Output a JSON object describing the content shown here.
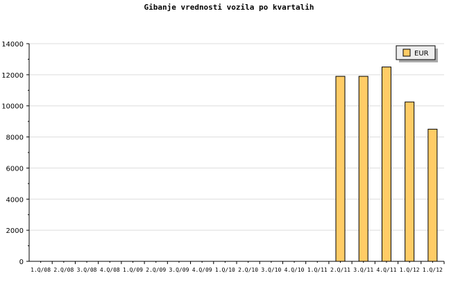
{
  "chart_data": {
    "type": "bar",
    "title": "Gibanje vrednosti vozila po kvartalih",
    "xlabel": "",
    "ylabel": "",
    "categories": [
      "1.Q/08",
      "2.Q/08",
      "3.Q/08",
      "4.Q/08",
      "1.Q/09",
      "2.Q/09",
      "3.Q/09",
      "4.Q/09",
      "1.Q/10",
      "2.Q/10",
      "3.Q/10",
      "4.Q/10",
      "1.Q/11",
      "2.Q/11",
      "3.Q/11",
      "4.Q/11",
      "1.Q/12",
      "1.Q/12"
    ],
    "series": [
      {
        "name": "EUR",
        "color": "#ffcc66",
        "values": [
          0,
          0,
          0,
          0,
          0,
          0,
          0,
          0,
          0,
          0,
          0,
          0,
          0,
          11900,
          11900,
          12500,
          10250,
          8500
        ]
      }
    ],
    "ylim": [
      0,
      14000
    ],
    "yticks": [
      0,
      2000,
      4000,
      6000,
      8000,
      10000,
      12000,
      14000
    ],
    "grid": true,
    "legend": "top-right"
  }
}
